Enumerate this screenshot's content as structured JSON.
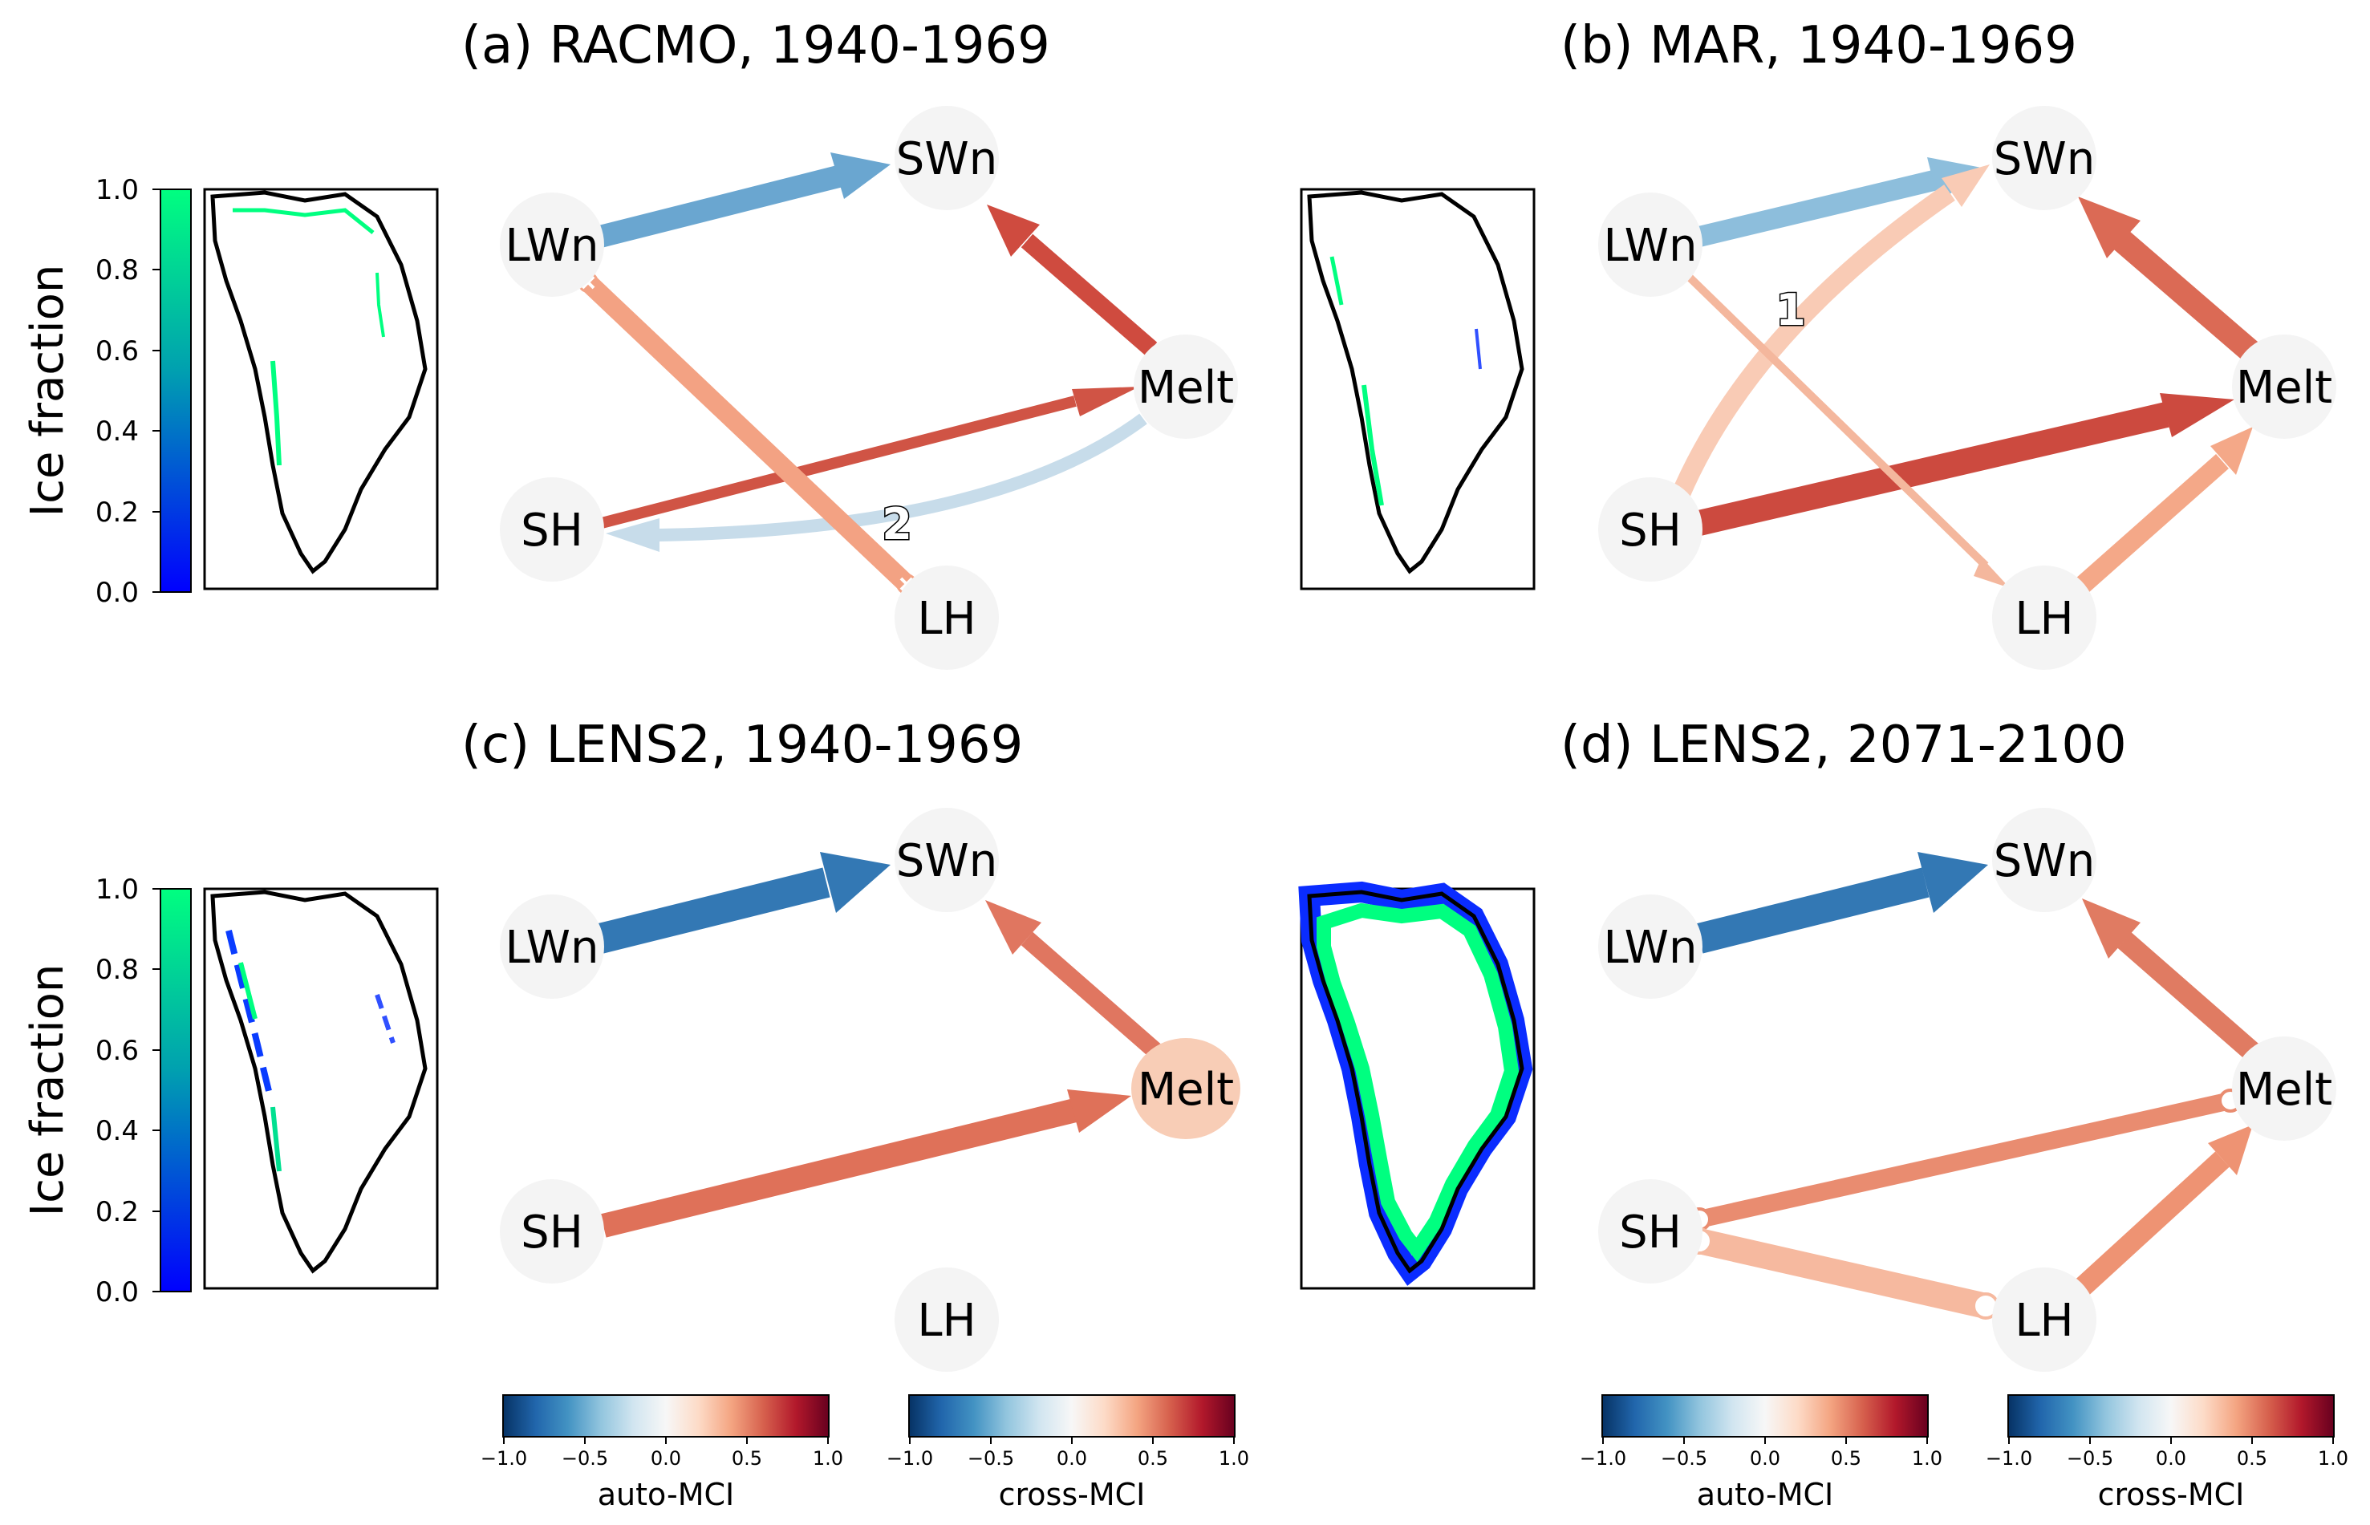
{
  "colors": {
    "node_fill": "#f4f4f4",
    "melt_highlight": "#f8cdb6",
    "ice_colormap": [
      "#0000ff",
      "#00ff80"
    ],
    "mci_colormap": [
      "#063264",
      "#2166ac",
      "#4393c3",
      "#92c5de",
      "#d1e5f0",
      "#f7f7f7",
      "#fddbc7",
      "#f4a582",
      "#d6604d",
      "#b2182b",
      "#67001f"
    ]
  },
  "ice_colorbar": {
    "label": "Ice fraction",
    "ticks": [
      "0.0",
      "0.2",
      "0.4",
      "0.6",
      "0.8",
      "1.0"
    ]
  },
  "mci_colorbars": [
    {
      "label": "auto-MCI",
      "ticks": [
        "−1.0",
        "−0.5",
        "0.0",
        "0.5",
        "1.0"
      ]
    },
    {
      "label": "cross-MCI",
      "ticks": [
        "−1.0",
        "−0.5",
        "0.0",
        "0.5",
        "1.0"
      ]
    }
  ],
  "panels": [
    {
      "id": "a",
      "title": "(a) RACMO, 1940-1969",
      "nodes": {
        "SWn": "SWn",
        "LWn": "LWn",
        "Melt": "Melt",
        "SH": "SH",
        "LH": "LH"
      },
      "edges": [
        {
          "from": "LWn",
          "to": "SWn",
          "color": "#6aa6d0",
          "weight": 3,
          "directed": true
        },
        {
          "from": "Melt",
          "to": "SWn",
          "color": "#cf4b3f",
          "weight": 3,
          "directed": true
        },
        {
          "from": "SH",
          "to": "Melt",
          "color": "#d05445",
          "weight": 2,
          "directed": true
        },
        {
          "from": "Melt",
          "to": "SH",
          "color": "#c7dcea",
          "weight": 2,
          "directed": true,
          "curved": true
        },
        {
          "from": "LWn",
          "to": "LH",
          "color": "#f3a283",
          "weight": 3,
          "directed": false,
          "lag": "2",
          "marker": "x"
        }
      ]
    },
    {
      "id": "b",
      "title": "(b) MAR, 1940-1969",
      "nodes": {
        "SWn": "SWn",
        "LWn": "LWn",
        "Melt": "Melt",
        "SH": "SH",
        "LH": "LH"
      },
      "edges": [
        {
          "from": "LWn",
          "to": "SWn",
          "color": "#8dbedc",
          "weight": 3,
          "directed": true
        },
        {
          "from": "Melt",
          "to": "SWn",
          "color": "#db6a55",
          "weight": 4,
          "directed": true
        },
        {
          "from": "SH",
          "to": "Melt",
          "color": "#cc4a3f",
          "weight": 4,
          "directed": true
        },
        {
          "from": "SH",
          "to": "SWn",
          "color": "#f9cbb5",
          "weight": 3,
          "directed": true,
          "curved": true,
          "lag": "1"
        },
        {
          "from": "LWn",
          "to": "LH",
          "color": "#f4b79d",
          "weight": 1,
          "directed": true
        },
        {
          "from": "LH",
          "to": "Melt",
          "color": "#f4a888",
          "weight": 3,
          "directed": true
        }
      ]
    },
    {
      "id": "c",
      "title": "(c) LENS2, 1940-1969",
      "nodes": {
        "SWn": "SWn",
        "LWn": "LWn",
        "Melt": "Melt",
        "SH": "SH",
        "LH": "LH"
      },
      "edges": [
        {
          "from": "LWn",
          "to": "SWn",
          "color": "#3378b4",
          "weight": 5,
          "directed": true
        },
        {
          "from": "Melt",
          "to": "SWn",
          "color": "#e07660",
          "weight": 3,
          "directed": true
        },
        {
          "from": "SH",
          "to": "Melt",
          "color": "#df7159",
          "weight": 4,
          "directed": true
        }
      ]
    },
    {
      "id": "d",
      "title": "(d) LENS2, 2071-2100",
      "nodes": {
        "SWn": "SWn",
        "LWn": "LWn",
        "Melt": "Melt",
        "SH": "SH",
        "LH": "LH"
      },
      "edges": [
        {
          "from": "LWn",
          "to": "SWn",
          "color": "#3378b4",
          "weight": 5,
          "directed": true
        },
        {
          "from": "Melt",
          "to": "SWn",
          "color": "#e07b62",
          "weight": 3,
          "directed": true
        },
        {
          "from": "SH",
          "to": "Melt",
          "color": "#e98c70",
          "weight": 3,
          "directed": false,
          "marker": "o"
        },
        {
          "from": "SH",
          "to": "LH",
          "color": "#f6b99f",
          "weight": 4,
          "directed": false,
          "marker": "o"
        },
        {
          "from": "LH",
          "to": "Melt",
          "color": "#ee9373",
          "weight": 3,
          "directed": true
        }
      ]
    }
  ]
}
